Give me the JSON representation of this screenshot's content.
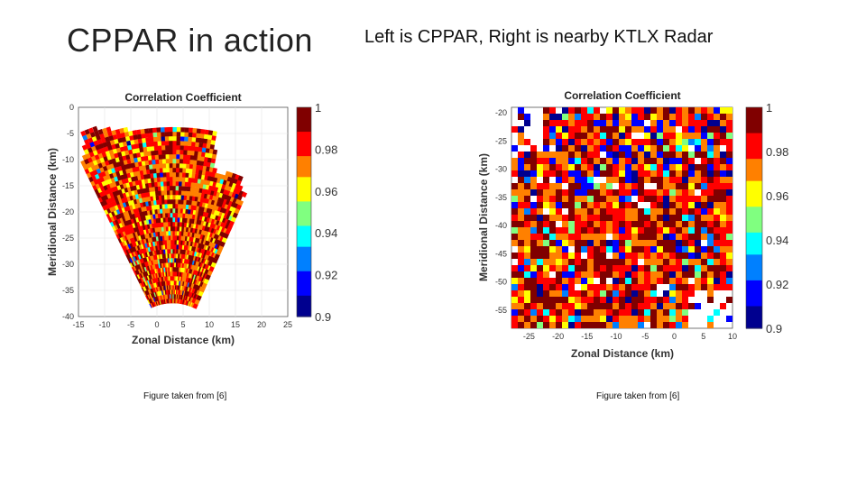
{
  "slide": {
    "title": "CPPAR in action",
    "subtitle": "Left is CPPAR, Right is nearby KTLX Radar",
    "left_caption": "Figure taken from [6]",
    "right_caption": "Figure taken from [6]"
  },
  "colors": {
    "colormap": [
      "#00008f",
      "#0000ff",
      "#0080ff",
      "#00ffff",
      "#80ff80",
      "#ffff00",
      "#ff8000",
      "#ff0000",
      "#800000"
    ]
  },
  "chart_data": [
    {
      "type": "heatmap",
      "title": "Correlation Coefficient",
      "xlabel": "Zonal Distance (km)",
      "ylabel": "Meridional Distance (km)",
      "xlim": [
        -15,
        25
      ],
      "ylim": [
        -40,
        0
      ],
      "x_ticks": [
        "-15",
        "-10",
        "-5",
        "0",
        "5",
        "10",
        "15",
        "20",
        "25"
      ],
      "y_ticks": [
        "0",
        "-5",
        "-10",
        "-15",
        "-20",
        "-25",
        "-30",
        "-35",
        "-40"
      ],
      "colorbar_ticks": [
        "1",
        "0.98",
        "0.96",
        "0.94",
        "0.92",
        "0.9"
      ],
      "clim": [
        0.9,
        1
      ]
    },
    {
      "type": "heatmap",
      "title": "Correlation Coefficient",
      "xlabel": "Zonal Distance (km)",
      "ylabel": "Meridional Distance (km)",
      "xlim": [
        -28,
        10
      ],
      "ylim": [
        -57,
        -17
      ],
      "x_ticks": [
        "-25",
        "-20",
        "-15",
        "-10",
        "-5",
        "0",
        "5",
        "10"
      ],
      "y_ticks": [
        "-20",
        "-25",
        "-30",
        "-35",
        "-40",
        "-45",
        "-50",
        "-55"
      ],
      "colorbar_ticks": [
        "1",
        "0.98",
        "0.96",
        "0.94",
        "0.92",
        "0.9"
      ],
      "clim": [
        0.9,
        1
      ]
    }
  ]
}
